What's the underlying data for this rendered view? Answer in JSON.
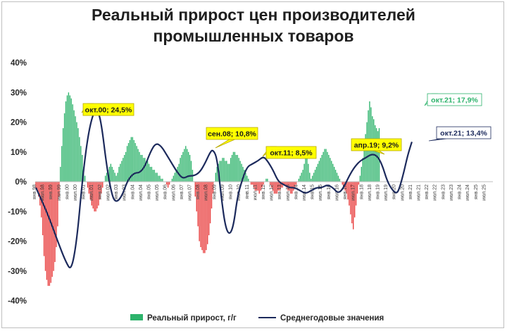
{
  "chart_data": {
    "type": "bar",
    "title_line1": "Реальный прирост цен производителей",
    "title_line2": "промышленных товаров",
    "ylim": [
      -40,
      40
    ],
    "y_ticks": [
      40,
      30,
      20,
      10,
      0,
      -10,
      -20,
      -30,
      -40
    ],
    "y_tick_labels": [
      "40%",
      "30%",
      "20%",
      "10%",
      "0%",
      "-10%",
      "-20%",
      "-30%",
      "-40%"
    ],
    "x_labels": [
      "янв.98",
      "июл.98",
      "янв.99",
      "июл.99",
      "янв.00",
      "июл.00",
      "янв.01",
      "июл.01",
      "янв.02",
      "июл.02",
      "янв.03",
      "июл.03",
      "янв.04",
      "июл.04",
      "янв.05",
      "июл.05",
      "янв.06",
      "июл.06",
      "янв.07",
      "июл.07",
      "янв.08",
      "июл.08",
      "янв.09",
      "июл.09",
      "янв.10",
      "июл.10",
      "янв.11",
      "июл.11",
      "янв.12",
      "июл.12",
      "янв.13",
      "июл.13",
      "янв.14",
      "июл.14",
      "янв.15",
      "июл.15",
      "янв.16",
      "июл.16",
      "янв.17",
      "июл.17",
      "янв.18",
      "июл.18",
      "янв.19",
      "июл.19",
      "янв.20",
      "июл.20",
      "янв.21",
      "июл.21",
      "янв.22",
      "июл.22",
      "янв.23",
      "июл.23",
      "янв.24",
      "июл.24",
      "янв.25",
      "июл.25"
    ],
    "grid": false,
    "legend_position": "bottom",
    "series": [
      {
        "name": "Реальный прирост, г/г",
        "kind": "bar",
        "positive_color": "#2db36b",
        "negative_color": "#e83a3a",
        "values": [
          -2,
          -3,
          -5,
          -8,
          -12,
          -18,
          -25,
          -30,
          -33,
          -35,
          -35,
          -34,
          -32,
          -30,
          -27,
          -22,
          -15,
          -5,
          5,
          12,
          18,
          23,
          27,
          29,
          30,
          29,
          28,
          26,
          24,
          22,
          20,
          18,
          15,
          12,
          9,
          5,
          2,
          0,
          -2,
          -4,
          -6,
          -8,
          -9,
          -10,
          -10,
          -9,
          -8,
          -6,
          -4,
          -2,
          0,
          2,
          3,
          4,
          5,
          6,
          5,
          4,
          3,
          2,
          3,
          5,
          6,
          7,
          8,
          9,
          10,
          12,
          13,
          14,
          15,
          15,
          14,
          13,
          12,
          11,
          10,
          9,
          9,
          8,
          8,
          7,
          7,
          6,
          5,
          5,
          4,
          4,
          3,
          3,
          2,
          2,
          1,
          1,
          0,
          0,
          -1,
          -2,
          -1,
          0,
          1,
          2,
          3,
          4,
          5,
          6,
          8,
          9,
          10,
          11,
          12,
          11,
          10,
          9,
          7,
          4,
          0,
          -5,
          -10,
          -15,
          -20,
          -22,
          -23,
          -24,
          -24,
          -23,
          -21,
          -18,
          -14,
          -9,
          -4,
          0,
          3,
          5,
          6,
          7,
          7,
          8,
          8,
          7,
          7,
          6,
          6,
          8,
          9,
          10,
          10,
          9,
          9,
          8,
          7,
          6,
          5,
          4,
          3,
          2,
          1,
          0,
          -1,
          -1,
          -2,
          -3,
          -3,
          -3,
          -4,
          -3,
          -2,
          -1,
          0,
          1,
          1,
          0,
          -1,
          -2,
          -3,
          -4,
          -4,
          -4,
          -3,
          -3,
          -2,
          -2,
          -1,
          -1,
          -2,
          -3,
          -3,
          -4,
          -4,
          -3,
          -2,
          -1,
          0,
          1,
          2,
          3,
          4,
          6,
          8,
          10,
          6,
          3,
          1,
          2,
          3,
          4,
          5,
          6,
          7,
          8,
          9,
          10,
          11,
          11,
          10,
          9,
          8,
          7,
          6,
          5,
          4,
          3,
          2,
          1,
          0,
          -1,
          -2,
          -3,
          -4,
          -6,
          -8,
          -11,
          -14,
          -16,
          -12,
          -8,
          -4,
          -1,
          2,
          5,
          8,
          12,
          16,
          20,
          24,
          27,
          25,
          22,
          21,
          19,
          18,
          17,
          18
        ]
      },
      {
        "name": "Среднегодовые значения",
        "kind": "line",
        "color": "#1c2a5c",
        "points": [
          [
            0,
            -2
          ],
          [
            8,
            -10
          ],
          [
            16,
            -20
          ],
          [
            22,
            -27
          ],
          [
            26,
            -30
          ],
          [
            30,
            -20
          ],
          [
            34,
            0
          ],
          [
            38,
            15
          ],
          [
            42,
            23
          ],
          [
            45,
            24.5
          ],
          [
            48,
            20
          ],
          [
            52,
            5
          ],
          [
            56,
            -5
          ],
          [
            59,
            -7
          ],
          [
            63,
            -5
          ],
          [
            67,
            0
          ],
          [
            70,
            2
          ],
          [
            73,
            3
          ],
          [
            76,
            3
          ],
          [
            80,
            5
          ],
          [
            84,
            10
          ],
          [
            88,
            13
          ],
          [
            92,
            12
          ],
          [
            96,
            9
          ],
          [
            100,
            6
          ],
          [
            104,
            3
          ],
          [
            108,
            1
          ],
          [
            112,
            2
          ],
          [
            116,
            2
          ],
          [
            120,
            3
          ],
          [
            124,
            6
          ],
          [
            128,
            10
          ],
          [
            130,
            10.8
          ],
          [
            133,
            8
          ],
          [
            136,
            -5
          ],
          [
            139,
            -15
          ],
          [
            142,
            -18
          ],
          [
            145,
            -15
          ],
          [
            148,
            -5
          ],
          [
            151,
            0
          ],
          [
            155,
            5
          ],
          [
            159,
            6
          ],
          [
            163,
            7
          ],
          [
            167,
            8.5
          ],
          [
            170,
            7
          ],
          [
            174,
            4
          ],
          [
            178,
            0
          ],
          [
            182,
            -1
          ],
          [
            186,
            -2
          ],
          [
            190,
            -2
          ],
          [
            194,
            -3
          ],
          [
            198,
            -4
          ],
          [
            202,
            -3
          ],
          [
            206,
            -2
          ],
          [
            210,
            -2
          ],
          [
            214,
            -1
          ],
          [
            218,
            -2
          ],
          [
            222,
            -4
          ],
          [
            226,
            -2
          ],
          [
            230,
            2
          ],
          [
            234,
            5
          ],
          [
            238,
            7
          ],
          [
            242,
            8
          ],
          [
            246,
            9.2
          ],
          [
            250,
            9
          ],
          [
            254,
            6
          ],
          [
            258,
            0
          ],
          [
            262,
            -3
          ],
          [
            265,
            -4
          ],
          [
            267,
            -2
          ],
          [
            270,
            3
          ],
          [
            273,
            9
          ],
          [
            276,
            13.4
          ]
        ]
      }
    ],
    "annotations": [
      {
        "text": "окт.00; 24,5%",
        "style": "yellow",
        "text_color": "#1a1a1a"
      },
      {
        "text": "сен.08; 10,8%",
        "style": "yellow",
        "text_color": "#1a1a1a"
      },
      {
        "text": "окт.11; 8,5%",
        "style": "yellow",
        "text_color": "#1a1a1a"
      },
      {
        "text": "апр.19; 9,2%",
        "style": "yellow",
        "text_color": "#1a1a1a"
      },
      {
        "text": "окт.21; 17,9%",
        "style": "outline-green",
        "text_color": "#2db36b"
      },
      {
        "text": "окт.21; 13,4%",
        "style": "outline-navy",
        "text_color": "#1c2a5c"
      }
    ]
  }
}
